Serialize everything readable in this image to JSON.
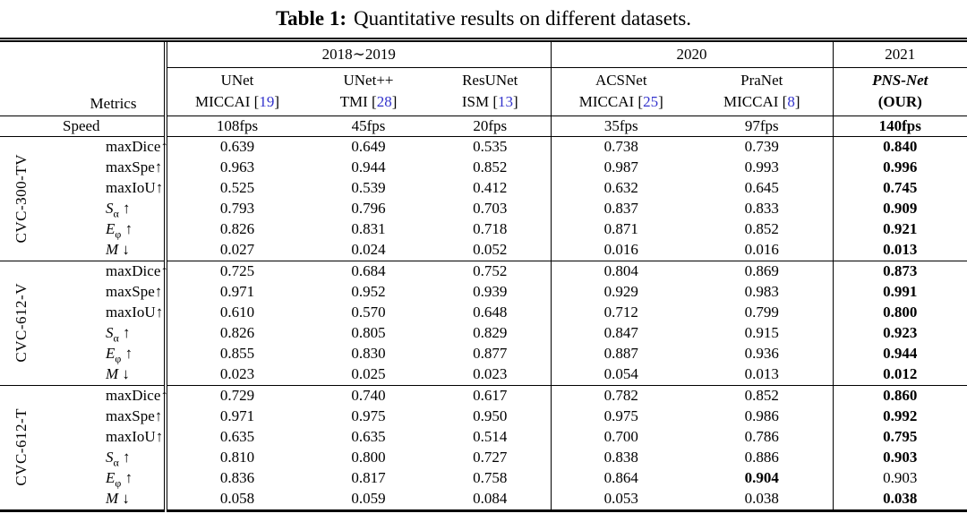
{
  "title": {
    "label": "Table 1:",
    "text": "Quantitative results on different datasets."
  },
  "colors": {
    "citation": "#3333CC",
    "text": "#000000"
  },
  "header": {
    "metrics_label": "Metrics",
    "year_groups": [
      {
        "label": "2018∼2019"
      },
      {
        "label": "2020"
      },
      {
        "label": "2021"
      }
    ],
    "models": [
      {
        "name": "UNet",
        "venue": "MICCAI",
        "cite": "19"
      },
      {
        "name": "UNet++",
        "venue": "TMI",
        "cite": "28"
      },
      {
        "name": "ResUNet",
        "venue": "ISM",
        "cite": "13"
      },
      {
        "name": "ACSNet",
        "venue": "MICCAI",
        "cite": "25"
      },
      {
        "name": "PraNet",
        "venue": "MICCAI",
        "cite": "8"
      },
      {
        "name": "PNS-Net",
        "venue": "(OUR)",
        "cite": null
      }
    ]
  },
  "speed": {
    "label": "Speed",
    "values": [
      "108fps",
      "45fps",
      "20fps",
      "35fps",
      "97fps",
      "140fps"
    ]
  },
  "groups": [
    {
      "dataset": "CVC-300-TV",
      "rows": [
        {
          "metric": "maxDice",
          "sub": "",
          "arrow": "↑",
          "italic": false,
          "spaced": false,
          "values": [
            "0.639",
            "0.649",
            "0.535",
            "0.738",
            "0.739",
            "0.840"
          ],
          "bold": [
            0,
            0,
            0,
            0,
            0,
            1
          ]
        },
        {
          "metric": "maxSpe",
          "sub": "",
          "arrow": "↑",
          "italic": false,
          "spaced": false,
          "values": [
            "0.963",
            "0.944",
            "0.852",
            "0.987",
            "0.993",
            "0.996"
          ],
          "bold": [
            0,
            0,
            0,
            0,
            0,
            1
          ]
        },
        {
          "metric": "maxIoU",
          "sub": "",
          "arrow": "↑",
          "italic": false,
          "spaced": false,
          "values": [
            "0.525",
            "0.539",
            "0.412",
            "0.632",
            "0.645",
            "0.745"
          ],
          "bold": [
            0,
            0,
            0,
            0,
            0,
            1
          ]
        },
        {
          "metric": "S",
          "sub": "α",
          "arrow": "↑",
          "italic": true,
          "spaced": true,
          "values": [
            "0.793",
            "0.796",
            "0.703",
            "0.837",
            "0.833",
            "0.909"
          ],
          "bold": [
            0,
            0,
            0,
            0,
            0,
            1
          ]
        },
        {
          "metric": "E",
          "sub": "φ",
          "arrow": "↑",
          "italic": true,
          "spaced": true,
          "values": [
            "0.826",
            "0.831",
            "0.718",
            "0.871",
            "0.852",
            "0.921"
          ],
          "bold": [
            0,
            0,
            0,
            0,
            0,
            1
          ]
        },
        {
          "metric": "M",
          "sub": "",
          "arrow": "↓",
          "italic": true,
          "spaced": true,
          "values": [
            "0.027",
            "0.024",
            "0.052",
            "0.016",
            "0.016",
            "0.013"
          ],
          "bold": [
            0,
            0,
            0,
            0,
            0,
            1
          ]
        }
      ]
    },
    {
      "dataset": "CVC-612-V",
      "rows": [
        {
          "metric": "maxDice",
          "sub": "",
          "arrow": "↑",
          "italic": false,
          "spaced": false,
          "values": [
            "0.725",
            "0.684",
            "0.752",
            "0.804",
            "0.869",
            "0.873"
          ],
          "bold": [
            0,
            0,
            0,
            0,
            0,
            1
          ]
        },
        {
          "metric": "maxSpe",
          "sub": "",
          "arrow": "↑",
          "italic": false,
          "spaced": false,
          "values": [
            "0.971",
            "0.952",
            "0.939",
            "0.929",
            "0.983",
            "0.991"
          ],
          "bold": [
            0,
            0,
            0,
            0,
            0,
            1
          ]
        },
        {
          "metric": "maxIoU",
          "sub": "",
          "arrow": "↑",
          "italic": false,
          "spaced": false,
          "values": [
            "0.610",
            "0.570",
            "0.648",
            "0.712",
            "0.799",
            "0.800"
          ],
          "bold": [
            0,
            0,
            0,
            0,
            0,
            1
          ]
        },
        {
          "metric": "S",
          "sub": "α",
          "arrow": "↑",
          "italic": true,
          "spaced": true,
          "values": [
            "0.826",
            "0.805",
            "0.829",
            "0.847",
            "0.915",
            "0.923"
          ],
          "bold": [
            0,
            0,
            0,
            0,
            0,
            1
          ]
        },
        {
          "metric": "E",
          "sub": "φ",
          "arrow": "↑",
          "italic": true,
          "spaced": true,
          "values": [
            "0.855",
            "0.830",
            "0.877",
            "0.887",
            "0.936",
            "0.944"
          ],
          "bold": [
            0,
            0,
            0,
            0,
            0,
            1
          ]
        },
        {
          "metric": "M",
          "sub": "",
          "arrow": "↓",
          "italic": true,
          "spaced": true,
          "values": [
            "0.023",
            "0.025",
            "0.023",
            "0.054",
            "0.013",
            "0.012"
          ],
          "bold": [
            0,
            0,
            0,
            0,
            0,
            1
          ]
        }
      ]
    },
    {
      "dataset": "CVC-612-T",
      "rows": [
        {
          "metric": "maxDice",
          "sub": "",
          "arrow": "↑",
          "italic": false,
          "spaced": false,
          "values": [
            "0.729",
            "0.740",
            "0.617",
            "0.782",
            "0.852",
            "0.860"
          ],
          "bold": [
            0,
            0,
            0,
            0,
            0,
            1
          ]
        },
        {
          "metric": "maxSpe",
          "sub": "",
          "arrow": "↑",
          "italic": false,
          "spaced": false,
          "values": [
            "0.971",
            "0.975",
            "0.950",
            "0.975",
            "0.986",
            "0.992"
          ],
          "bold": [
            0,
            0,
            0,
            0,
            0,
            1
          ]
        },
        {
          "metric": "maxIoU",
          "sub": "",
          "arrow": "↑",
          "italic": false,
          "spaced": false,
          "values": [
            "0.635",
            "0.635",
            "0.514",
            "0.700",
            "0.786",
            "0.795"
          ],
          "bold": [
            0,
            0,
            0,
            0,
            0,
            1
          ]
        },
        {
          "metric": "S",
          "sub": "α",
          "arrow": "↑",
          "italic": true,
          "spaced": true,
          "values": [
            "0.810",
            "0.800",
            "0.727",
            "0.838",
            "0.886",
            "0.903"
          ],
          "bold": [
            0,
            0,
            0,
            0,
            0,
            1
          ]
        },
        {
          "metric": "E",
          "sub": "φ",
          "arrow": "↑",
          "italic": true,
          "spaced": true,
          "values": [
            "0.836",
            "0.817",
            "0.758",
            "0.864",
            "0.904",
            "0.903"
          ],
          "bold": [
            0,
            0,
            0,
            0,
            1,
            0
          ]
        },
        {
          "metric": "M",
          "sub": "",
          "arrow": "↓",
          "italic": true,
          "spaced": true,
          "values": [
            "0.058",
            "0.059",
            "0.084",
            "0.053",
            "0.038",
            "0.038"
          ],
          "bold": [
            0,
            0,
            0,
            0,
            0,
            1
          ]
        }
      ]
    }
  ]
}
